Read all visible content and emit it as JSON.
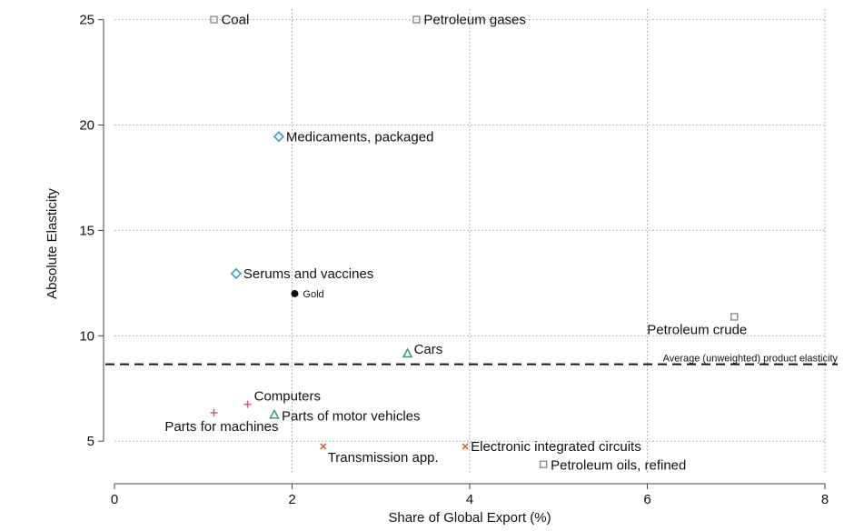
{
  "chart_data": {
    "type": "scatter",
    "title": "",
    "xlabel": "Share of Global Export (%)",
    "ylabel": "Absolute Elasticity",
    "xlim": [
      0,
      8
    ],
    "ylim": [
      3.5,
      25.5
    ],
    "xticks": [
      0,
      2,
      4,
      6,
      8
    ],
    "yticks": [
      5,
      10,
      15,
      20,
      25
    ],
    "grid": true,
    "reference_line": {
      "y": 8.65,
      "label": "Average (unweighted) product elasticity"
    },
    "colors": {
      "gray": "#8c8c8c",
      "blue": "#3a9bd5",
      "black": "#111111",
      "green": "#2e9e78",
      "pink": "#c9579a",
      "orange": "#d45a1e"
    },
    "points": [
      {
        "label": "Coal",
        "x": 1.12,
        "y": 25.0,
        "marker": "square",
        "color": "gray"
      },
      {
        "label": "Petroleum gases",
        "x": 3.4,
        "y": 25.0,
        "marker": "square",
        "color": "gray"
      },
      {
        "label": "Medicaments, packaged",
        "x": 1.85,
        "y": 19.45,
        "marker": "diamond",
        "color": "blue"
      },
      {
        "label": "Serums and vaccines",
        "x": 1.37,
        "y": 12.95,
        "marker": "diamond",
        "color": "blue"
      },
      {
        "label": "Gold",
        "x": 2.03,
        "y": 12.0,
        "marker": "circle",
        "color": "black"
      },
      {
        "label": "Petroleum crude",
        "x": 6.98,
        "y": 10.9,
        "marker": "square",
        "color": "gray"
      },
      {
        "label": "Cars",
        "x": 3.3,
        "y": 9.15,
        "marker": "triangle",
        "color": "green"
      },
      {
        "label": "Computers",
        "x": 1.5,
        "y": 6.75,
        "marker": "plus",
        "color": "pink"
      },
      {
        "label": "Parts for machines",
        "x": 1.12,
        "y": 6.35,
        "marker": "plus",
        "color": "pink"
      },
      {
        "label": "Parts of motor vehicles",
        "x": 1.8,
        "y": 6.25,
        "marker": "triangle",
        "color": "green"
      },
      {
        "label": "Transmission app.",
        "x": 2.35,
        "y": 4.75,
        "marker": "x",
        "color": "orange"
      },
      {
        "label": "Electronic integrated circuits",
        "x": 3.95,
        "y": 4.75,
        "marker": "x",
        "color": "orange"
      },
      {
        "label": "Petroleum oils, refined",
        "x": 4.83,
        "y": 3.9,
        "marker": "square",
        "color": "gray"
      }
    ]
  }
}
